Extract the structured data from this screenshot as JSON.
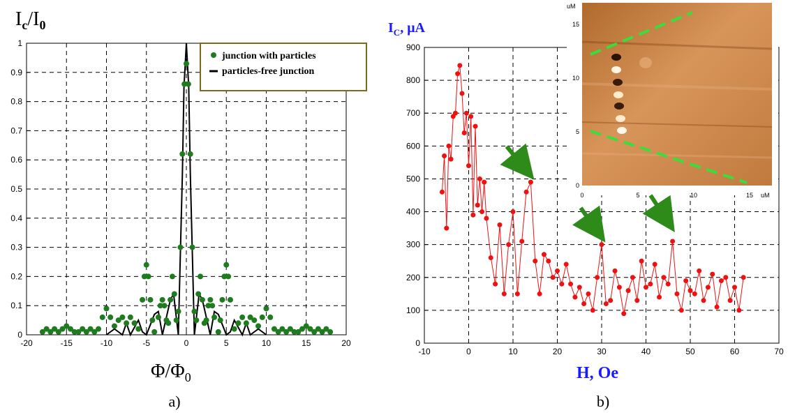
{
  "chart_data": [
    {
      "type": "scatter",
      "panel_label": "a)",
      "ylabel": "I",
      "ylabel_sub": "c",
      "ylabel_mid": "/I",
      "ylabel_sub2": "0",
      "xlabel": "Φ/Φ",
      "xlabel_sub": "0",
      "xlim": [
        -20,
        20
      ],
      "ylim": [
        0,
        1
      ],
      "x_ticks": [
        "-20",
        "-15",
        "-10",
        "-5",
        "0",
        "5",
        "10",
        "15",
        "20"
      ],
      "y_ticks": [
        "0",
        "0.1",
        "0.2",
        "0.3",
        "0.4",
        "0.5",
        "0.6",
        "0.7",
        "0.8",
        "0.9",
        "1"
      ],
      "grid": true,
      "legend_position": "top-right",
      "colors": {
        "particles": "#1e7b1e",
        "free": "#000000"
      },
      "series": [
        {
          "name": "junction with particles",
          "style": "markers",
          "x": [
            -18,
            -17.5,
            -17,
            -16.5,
            -16,
            -15.5,
            -15,
            -14.5,
            -14,
            -13.5,
            -13,
            -12.5,
            -12,
            -11.5,
            -11,
            -10.5,
            -10,
            -9.5,
            -9,
            -8.5,
            -8,
            -7.5,
            -7,
            -6.5,
            -6,
            -5.5,
            -5.25,
            -5,
            -4.75,
            -4.5,
            -4.25,
            -4,
            -3.5,
            -3.25,
            -3,
            -2.75,
            -2.5,
            -2.25,
            -2,
            -1.75,
            -1.5,
            -1.25,
            -1,
            -0.75,
            -0.5,
            -0.25,
            0,
            0.25,
            0.5,
            0.75,
            1,
            1.25,
            1.5,
            1.75,
            2,
            2.25,
            2.5,
            2.75,
            3,
            3.25,
            3.5,
            4,
            4.25,
            4.5,
            4.75,
            5,
            5.25,
            5.5,
            6,
            6.5,
            7,
            7.5,
            8,
            8.5,
            9,
            9.5,
            10,
            10.5,
            11,
            11.5,
            12,
            12.5,
            13,
            13.5,
            14,
            14.5,
            15,
            15.5,
            16,
            16.5,
            17,
            17.5,
            18
          ],
          "y": [
            0.01,
            0.02,
            0.01,
            0.02,
            0.01,
            0.02,
            0.03,
            0.02,
            0.01,
            0.01,
            0.02,
            0.01,
            0.02,
            0.01,
            0.02,
            0.06,
            0.09,
            0.06,
            0.03,
            0.05,
            0.06,
            0.04,
            0.06,
            0.04,
            0.02,
            0.12,
            0.2,
            0.24,
            0.2,
            0.12,
            0.05,
            0.01,
            0.06,
            0.1,
            0.12,
            0.1,
            0.05,
            0.04,
            0.12,
            0.2,
            0.14,
            0.05,
            0.08,
            0.3,
            0.62,
            0.86,
            0.93,
            0.86,
            0.62,
            0.3,
            0.08,
            0.05,
            0.14,
            0.2,
            0.12,
            0.04,
            0.05,
            0.1,
            0.12,
            0.1,
            0.06,
            0.01,
            0.05,
            0.12,
            0.2,
            0.24,
            0.2,
            0.12,
            0.02,
            0.04,
            0.06,
            0.04,
            0.06,
            0.05,
            0.03,
            0.06,
            0.09,
            0.06,
            0.02,
            0.01,
            0.02,
            0.01,
            0.02,
            0.01,
            0.01,
            0.02,
            0.03,
            0.02,
            0.01,
            0.02,
            0.01,
            0.02,
            0.01
          ]
        },
        {
          "name": "particles-free junction",
          "style": "line",
          "x": [
            -10,
            -9,
            -8,
            -7.5,
            -7,
            -6,
            -5.5,
            -5,
            -4,
            -3.5,
            -3,
            -2,
            -1.6,
            -1,
            -0.8,
            -0.5,
            -0.3,
            0,
            0.3,
            0.5,
            0.8,
            1,
            1.6,
            2,
            3,
            3.5,
            4,
            5,
            5.5,
            6,
            7,
            7.5,
            8,
            9,
            10
          ],
          "y": [
            0,
            0.02,
            0,
            0.04,
            0,
            0.05,
            0.01,
            0,
            0.07,
            0.08,
            0,
            0.12,
            0.14,
            0,
            0.22,
            0.55,
            0.85,
            1,
            0.85,
            0.55,
            0.22,
            0,
            0.14,
            0.12,
            0,
            0.08,
            0.07,
            0,
            0.01,
            0.05,
            0,
            0.04,
            0,
            0.02,
            0
          ]
        }
      ]
    },
    {
      "type": "line",
      "panel_label": "b)",
      "ylabel": "I",
      "ylabel_sub": "C",
      "ylabel_unit": ", μA",
      "xlabel": "H, Oe",
      "xlim": [
        -10,
        70
      ],
      "ylim": [
        0,
        900
      ],
      "x_ticks": [
        "-10",
        "0",
        "10",
        "20",
        "30",
        "40",
        "50",
        "60",
        "70"
      ],
      "y_ticks": [
        "0",
        "100",
        "200",
        "300",
        "400",
        "500",
        "600",
        "700",
        "800",
        "900"
      ],
      "grid": true,
      "colors": {
        "series": "#ee1111",
        "label": "#1a1aff",
        "arrow": "#2e8b1a"
      },
      "series": [
        {
          "x": [
            -6,
            -5.5,
            -5,
            -4.5,
            -4,
            -3.5,
            -3,
            -2.5,
            -2,
            -1.5,
            -1,
            -0.5,
            0,
            0.5,
            1,
            1.5,
            2,
            2.5,
            3,
            3.5,
            4,
            5,
            6,
            7,
            8,
            9,
            10,
            11,
            12,
            13,
            14,
            15,
            16,
            17,
            18,
            19,
            20,
            21,
            22,
            23,
            24,
            25,
            26,
            27,
            28,
            29,
            30,
            31,
            32,
            33,
            34,
            35,
            36,
            37,
            38,
            39,
            40,
            41,
            42,
            43,
            44,
            45,
            46,
            47,
            48,
            49,
            50,
            51,
            52,
            53,
            54,
            55,
            56,
            57,
            58,
            59,
            60,
            61,
            62
          ],
          "y": [
            460,
            570,
            350,
            600,
            560,
            690,
            700,
            820,
            845,
            760,
            640,
            700,
            540,
            690,
            390,
            660,
            420,
            500,
            400,
            490,
            380,
            260,
            180,
            360,
            150,
            300,
            400,
            150,
            310,
            460,
            490,
            250,
            150,
            270,
            250,
            200,
            220,
            180,
            240,
            180,
            140,
            170,
            120,
            150,
            100,
            200,
            300,
            120,
            130,
            220,
            170,
            90,
            160,
            200,
            130,
            250,
            170,
            180,
            240,
            140,
            200,
            180,
            310,
            150,
            100,
            190,
            160,
            150,
            220,
            130,
            170,
            210,
            110,
            190,
            200,
            130,
            170,
            100,
            200
          ]
        }
      ],
      "inset": {
        "x_ticks": [
          "0",
          "5",
          "10",
          "15"
        ],
        "y_ticks": [
          "0",
          "5",
          "10",
          "15"
        ],
        "x_unit": "uM",
        "y_unit": "uM"
      }
    }
  ]
}
